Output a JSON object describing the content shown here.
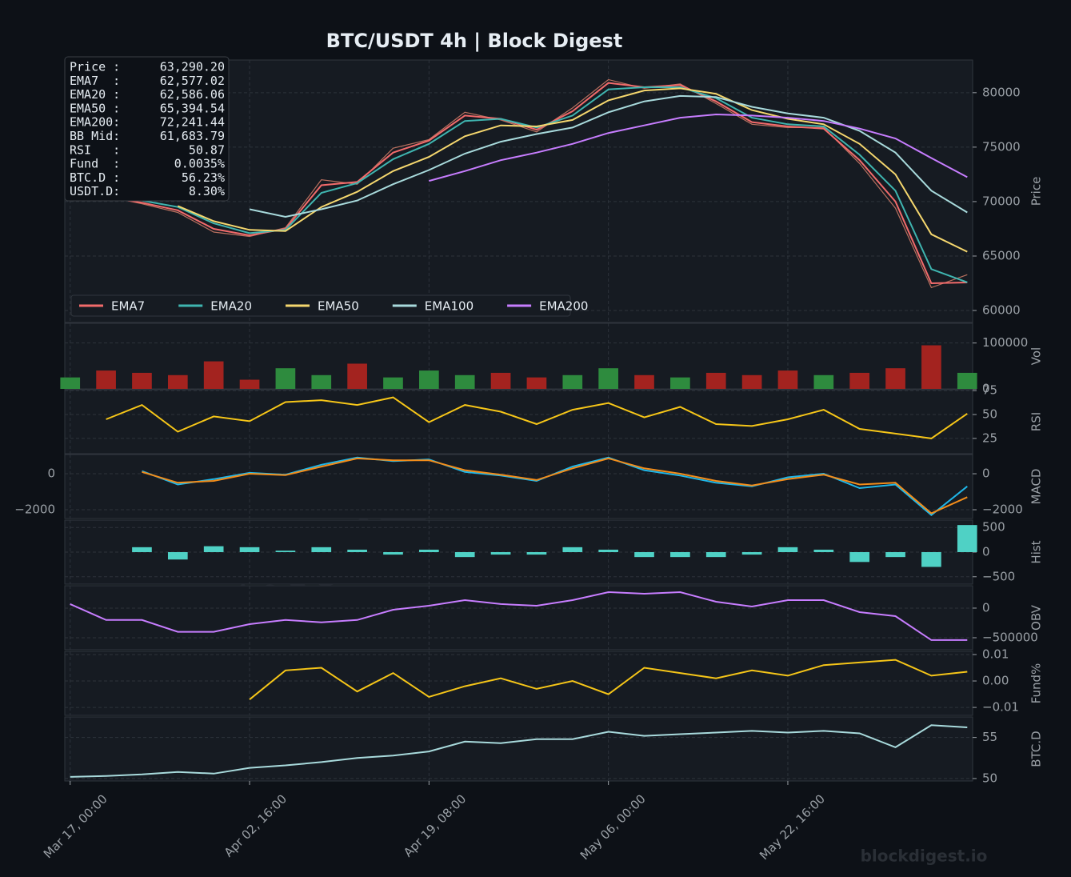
{
  "chart_data": {
    "type": "multi-panel",
    "title": "BTC/USDT  4h  |  Block Digest",
    "watermark": "blockdigest.io",
    "info_box": [
      [
        "Price :",
        "63,290.20"
      ],
      [
        "EMA7  :",
        "62,577.02"
      ],
      [
        "EMA20 :",
        "62,586.06"
      ],
      [
        "EMA50 :",
        "65,394.54"
      ],
      [
        "EMA200:",
        "72,241.44"
      ],
      [
        "BB Mid:",
        "61,683.79"
      ],
      [
        "RSI   :",
        "50.87"
      ],
      [
        "Fund  :",
        "0.0035%"
      ],
      [
        "BTC.D :",
        "56.23%"
      ],
      [
        "USDT.D:",
        "8.30%"
      ]
    ],
    "x": [
      0,
      20,
      40,
      60,
      80,
      100,
      120,
      140,
      160,
      180,
      200,
      220,
      240,
      260,
      280,
      300,
      320,
      340,
      360,
      380,
      400,
      420,
      440,
      460,
      480,
      500
    ],
    "xlim": [
      -3,
      503
    ],
    "xticks": [
      {
        "value": 0,
        "label": "Mar 17, 00:00"
      },
      {
        "value": 100,
        "label": "Apr 02, 16:00"
      },
      {
        "value": 200,
        "label": "Apr 19, 08:00"
      },
      {
        "value": 300,
        "label": "May 06, 00:00"
      },
      {
        "value": 400,
        "label": "May 22, 16:00"
      }
    ],
    "grid": true,
    "panels": [
      {
        "type": "line",
        "ylabel": "Price",
        "ylim": [
          58900,
          83000
        ],
        "yticks": [
          60000,
          65000,
          70000,
          75000,
          80000
        ],
        "legend": "lower left",
        "close": {
          "color": "#b9705f",
          "values": [
            70900,
            70500,
            69800,
            69000,
            67200,
            66800,
            67600,
            72000,
            71600,
            74900,
            75700,
            78200,
            77500,
            76400,
            78600,
            81200,
            80400,
            80800,
            79000,
            77100,
            76800,
            76800,
            73500,
            69400,
            62100,
            63290
          ]
        },
        "series": [
          {
            "name": "EMA7",
            "color": "#f26b6b",
            "values": [
              70800,
              70400,
              69900,
              69200,
              67500,
              66900,
              67500,
              71500,
              71800,
              74500,
              75600,
              77900,
              77600,
              76600,
              78300,
              80900,
              80500,
              80700,
              79200,
              77300,
              76900,
              76700,
              73800,
              70000,
              62500,
              62577
            ]
          },
          {
            "name": "EMA20",
            "color": "#3fb5b0",
            "values": [
              71000,
              70600,
              70100,
              69500,
              68000,
              67100,
              67400,
              70800,
              71700,
              73900,
              75300,
              77400,
              77600,
              76800,
              77900,
              80300,
              80500,
              80500,
              79500,
              77700,
              77100,
              76900,
              74300,
              71000,
              63800,
              62586
            ]
          },
          {
            "name": "EMA50",
            "color": "#f5d76e",
            "values": [
              null,
              null,
              null,
              69600,
              68200,
              67400,
              67300,
              69500,
              70900,
              72800,
              74100,
              76000,
              77000,
              76900,
              77500,
              79300,
              80200,
              80400,
              79900,
              78400,
              77600,
              77100,
              75300,
              72500,
              67000,
              65395
            ]
          },
          {
            "name": "EMA100",
            "color": "#a8dadc",
            "values": [
              null,
              null,
              null,
              null,
              null,
              69300,
              68600,
              69300,
              70100,
              71600,
              72900,
              74400,
              75500,
              76200,
              76800,
              78200,
              79200,
              79700,
              79600,
              78700,
              78100,
              77700,
              76500,
              74500,
              71000,
              69000
            ]
          },
          {
            "name": "EMA200",
            "color": "#c77dff",
            "values": [
              null,
              null,
              null,
              null,
              null,
              null,
              null,
              null,
              null,
              null,
              71900,
              72800,
              73800,
              74500,
              75300,
              76300,
              77000,
              77700,
              78000,
              77900,
              77700,
              77400,
              76700,
              75800,
              74000,
              72241
            ]
          }
        ]
      },
      {
        "type": "volume",
        "ylabel": "Vol",
        "ylim": [
          0,
          143000
        ],
        "yticks": [
          0,
          100000
        ],
        "up_color": "#2e8b3e",
        "down_color": "#a3231f",
        "series": [
          {
            "values": [
              25000,
              40000,
              35000,
              30000,
              60000,
              20000,
              45000,
              30000,
              55000,
              25000,
              40000,
              30000,
              35000,
              25000,
              30000,
              45000,
              30000,
              25000,
              35000,
              30000,
              40000,
              30000,
              35000,
              45000,
              95000,
              35000
            ]
          }
        ]
      },
      {
        "type": "line",
        "ylabel": "RSI",
        "ylim": [
          9,
          76
        ],
        "yticks": [
          25,
          50,
          75
        ],
        "series": [
          {
            "color": "#f5c518",
            "values": [
              null,
              45,
              60,
              32,
              48,
              43,
              63,
              65,
              60,
              68,
              42,
              60,
              53,
              40,
              55,
              62,
              47,
              58,
              40,
              38,
              45,
              55,
              35,
              30,
              25,
              51
            ]
          }
        ]
      },
      {
        "type": "line",
        "ylabel": "MACD",
        "ylim": [
          -2490,
          1070
        ],
        "yticks": [
          {
            "value": -2000,
            "label": "−2000"
          },
          0
        ],
        "left_tick_labels": true,
        "series": [
          {
            "color": "#1fb6e8",
            "values": [
              null,
              null,
              150,
              -600,
              -300,
              50,
              -50,
              500,
              900,
              700,
              800,
              100,
              -100,
              -400,
              400,
              900,
              200,
              -100,
              -500,
              -700,
              -200,
              0,
              -800,
              -600,
              -2300,
              -700
            ]
          },
          {
            "color": "#f28c1a",
            "values": [
              null,
              null,
              100,
              -500,
              -400,
              0,
              -80,
              400,
              850,
              750,
              750,
              200,
              -50,
              -350,
              300,
              850,
              300,
              0,
              -400,
              -650,
              -300,
              -50,
              -600,
              -500,
              -2200,
              -1300
            ]
          }
        ]
      },
      {
        "type": "bar",
        "ylabel": "Hist",
        "ylim": [
          -650,
          650
        ],
        "yticks": [
          {
            "value": -500,
            "label": "−500"
          },
          0,
          500
        ],
        "series": [
          {
            "color": "#4fd1c5",
            "values": [
              null,
              null,
              100,
              -150,
              120,
              100,
              30,
              100,
              50,
              -50,
              50,
              -100,
              -50,
              -50,
              100,
              50,
              -100,
              -100,
              -100,
              -50,
              100,
              50,
              -200,
              -100,
              -300,
              550
            ]
          }
        ]
      },
      {
        "type": "line",
        "ylabel": "OBV",
        "ylim": [
          -703000,
          378000
        ],
        "yticks": [
          {
            "value": -500000,
            "label": "−500000"
          },
          0
        ],
        "series": [
          {
            "color": "#c77dff",
            "values": [
              68000,
              -200000,
              -200000,
              -400000,
              -400000,
              -270000,
              -200000,
              -240000,
              -200000,
              -27000,
              40000,
              135000,
              68000,
              40000,
              135000,
              270000,
              243000,
              270000,
              108000,
              27000,
              135000,
              135000,
              -68000,
              -135000,
              -540000,
              -540000
            ]
          }
        ]
      },
      {
        "type": "line",
        "ylabel": "Fund%",
        "ylim": [
          -0.013,
          0.0112
        ],
        "yticks": [
          {
            "value": -0.01,
            "label": "−0.01"
          },
          {
            "value": 0,
            "label": "0.00"
          },
          0.01
        ],
        "series": [
          {
            "color": "#f5c518",
            "values": [
              null,
              null,
              null,
              null,
              null,
              -0.007,
              0.004,
              0.005,
              -0.004,
              0.003,
              -0.006,
              -0.002,
              0.001,
              -0.003,
              0.0,
              -0.005,
              0.005,
              0.003,
              0.001,
              0.004,
              0.002,
              0.006,
              0.007,
              0.008,
              0.002,
              0.0035
            ]
          }
        ]
      },
      {
        "type": "line",
        "ylabel": "BTC.D",
        "ylim": [
          49.7,
          57.5
        ],
        "yticks": [
          50,
          55
        ],
        "series": [
          {
            "color": "#a8dadc",
            "values": [
              50.2,
              50.3,
              50.5,
              50.8,
              50.6,
              51.3,
              51.6,
              52.0,
              52.5,
              52.8,
              53.3,
              54.5,
              54.3,
              54.8,
              54.8,
              55.7,
              55.2,
              55.4,
              55.6,
              55.8,
              55.6,
              55.8,
              55.5,
              53.8,
              56.5,
              56.23
            ]
          }
        ]
      }
    ]
  }
}
